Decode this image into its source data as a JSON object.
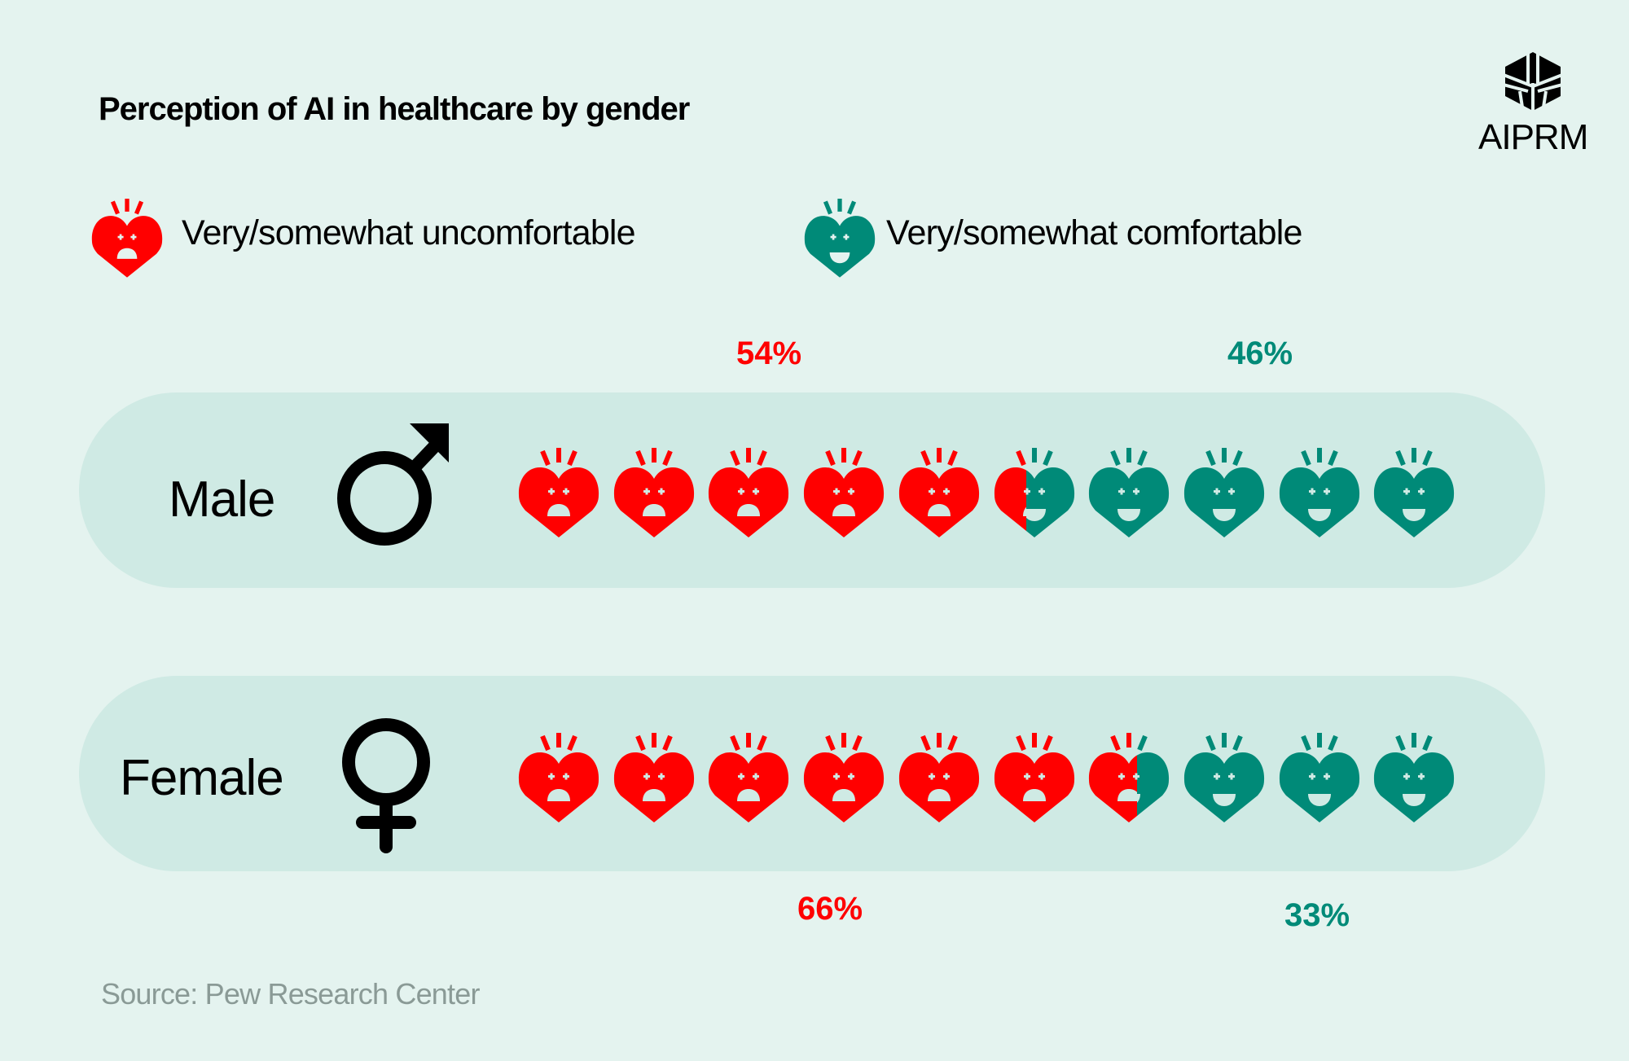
{
  "title": "Perception of AI in healthcare by gender",
  "logo": {
    "text": "AIPRM"
  },
  "legend": [
    {
      "label": "Very/somewhat uncomfortable",
      "icon": "sad-heart-icon",
      "color": "#ff0000"
    },
    {
      "label": "Very/somewhat comfortable",
      "icon": "happy-heart-icon",
      "color": "#008a78"
    }
  ],
  "source": "Source: Pew Research Center",
  "chart_data": {
    "type": "pictogram",
    "title": "Perception of AI in healthcare by gender",
    "categories": [
      "Male",
      "Female"
    ],
    "icons_per_row": 10,
    "series": [
      {
        "name": "Very/somewhat uncomfortable",
        "color": "#ff0000",
        "values": [
          54,
          66
        ],
        "labels": [
          "54%",
          "66%"
        ]
      },
      {
        "name": "Very/somewhat comfortable",
        "color": "#008a78",
        "values": [
          46,
          33
        ],
        "labels": [
          "46%",
          "33%"
        ]
      }
    ]
  }
}
